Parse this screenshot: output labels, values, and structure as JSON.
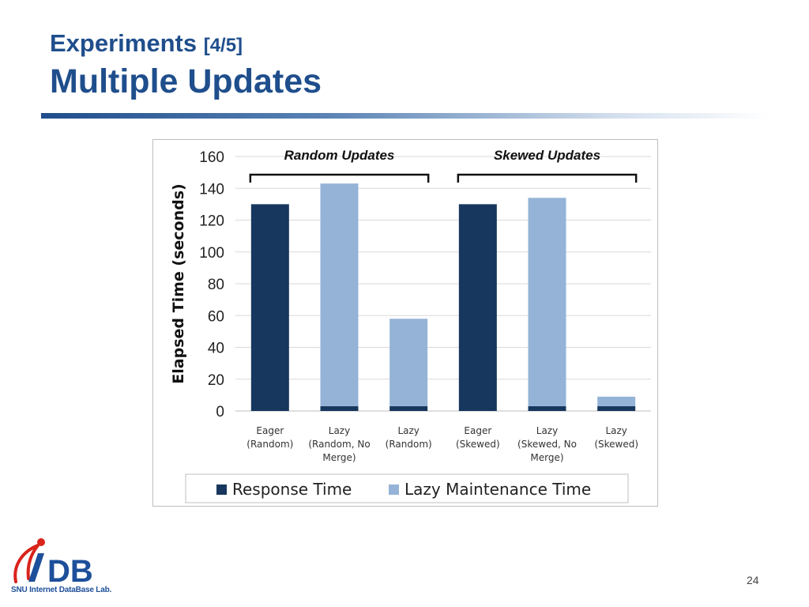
{
  "slide": {
    "title_main": "Experiments",
    "title_bracket": "[4/5]",
    "subtitle": "Multiple Updates",
    "page_number": "24",
    "logo_text": "DB",
    "logo_caption": "SNU Internet DataBase Lab."
  },
  "colors": {
    "title": "#1f4e8c",
    "response": "#17375e",
    "lazy": "#95b3d7"
  },
  "chart_data": {
    "type": "bar",
    "stacked": true,
    "ylabel": "Elapsed Time (seconds)",
    "ylim": [
      0,
      160
    ],
    "yticks": [
      0,
      20,
      40,
      60,
      80,
      100,
      120,
      140,
      160
    ],
    "grid": true,
    "legend_position": "bottom",
    "categories": [
      [
        "Eager",
        "(Random)"
      ],
      [
        "Lazy",
        "(Random, No",
        "Merge)"
      ],
      [
        "Lazy",
        "(Random)"
      ],
      [
        "Eager",
        "(Skewed)"
      ],
      [
        "Lazy",
        "(Skewed, No",
        "Merge)"
      ],
      [
        "Lazy",
        "(Skewed)"
      ]
    ],
    "series": [
      {
        "name": "Response Time",
        "values": [
          130,
          3,
          3,
          130,
          3,
          3
        ]
      },
      {
        "name": "Lazy Maintenance Time",
        "values": [
          0,
          140,
          55,
          0,
          131,
          6
        ]
      }
    ],
    "annotations": [
      {
        "text": "Random Updates",
        "from_category": 0,
        "to_category": 2
      },
      {
        "text": "Skewed Updates",
        "from_category": 3,
        "to_category": 5
      }
    ]
  }
}
